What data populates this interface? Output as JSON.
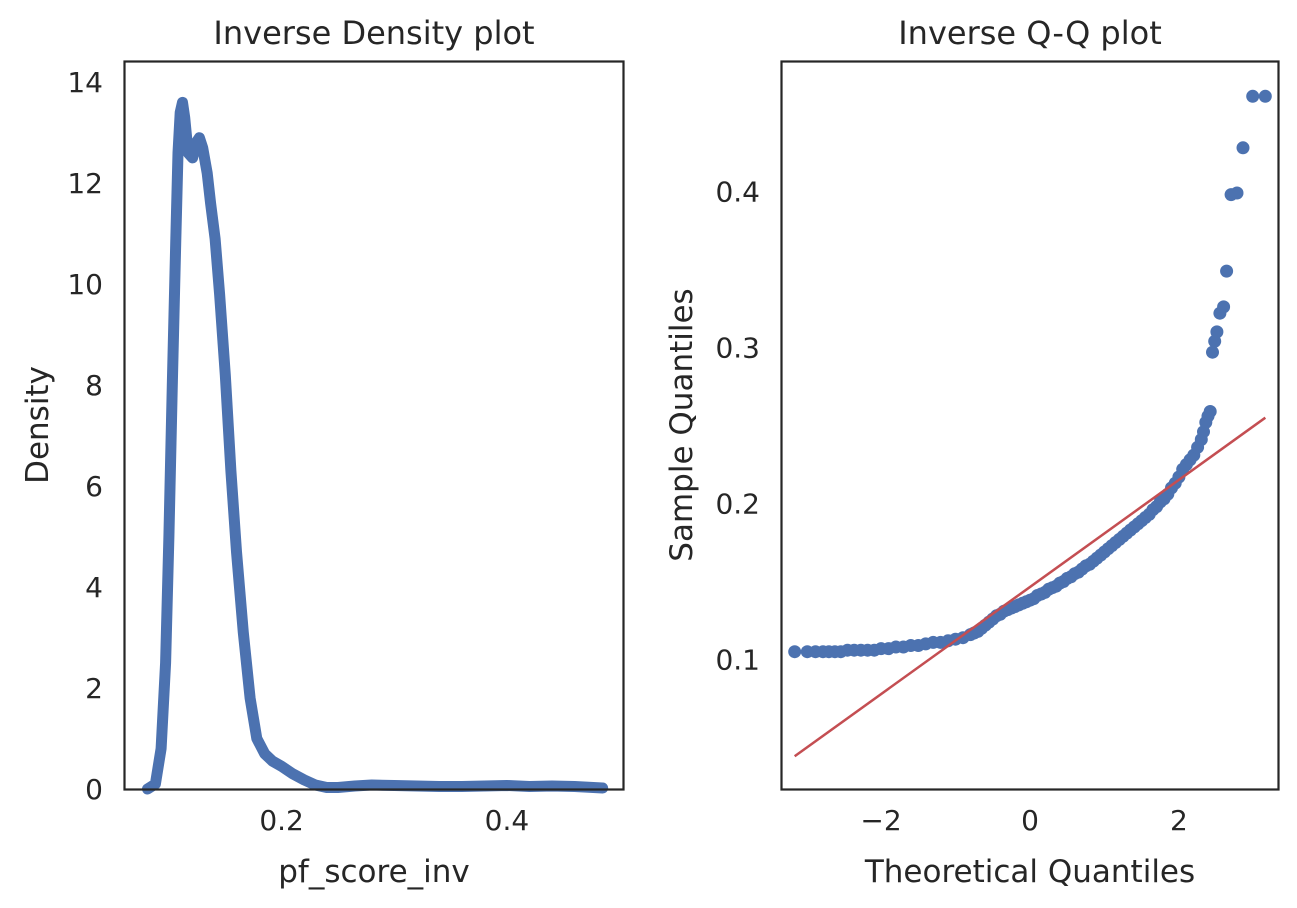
{
  "chart_data": [
    {
      "type": "line",
      "title": "Inverse Density plot",
      "xlabel": "pf_score_inv",
      "ylabel": "Density",
      "xlim": [
        0.061,
        0.503
      ],
      "ylim": [
        0,
        14.4
      ],
      "xticks": [
        0.2,
        0.4
      ],
      "xtick_labels": [
        "0.2",
        "0.4"
      ],
      "yticks": [
        0,
        2,
        4,
        6,
        8,
        10,
        12,
        14
      ],
      "ytick_labels": [
        "0",
        "2",
        "4",
        "6",
        "8",
        "10",
        "12",
        "14"
      ],
      "grid": false,
      "color": "#4c72b0",
      "series": [
        {
          "x": [
            0.081,
            0.088,
            0.093,
            0.097,
            0.1,
            0.103,
            0.106,
            0.108,
            0.11,
            0.112,
            0.114,
            0.117,
            0.121,
            0.124,
            0.127,
            0.13,
            0.134,
            0.137,
            0.141,
            0.145,
            0.15,
            0.155,
            0.16,
            0.166,
            0.172,
            0.178,
            0.185,
            0.192,
            0.2,
            0.21,
            0.22,
            0.23,
            0.24,
            0.25,
            0.265,
            0.28,
            0.3,
            0.32,
            0.34,
            0.36,
            0.38,
            0.4,
            0.42,
            0.44,
            0.46,
            0.485
          ],
          "y": [
            0,
            0.1,
            0.8,
            2.5,
            5.0,
            8.0,
            10.8,
            12.6,
            13.4,
            13.6,
            13.3,
            12.6,
            12.5,
            12.8,
            12.9,
            12.7,
            12.2,
            11.6,
            10.9,
            9.8,
            8.2,
            6.3,
            4.7,
            3.1,
            1.8,
            1.0,
            0.7,
            0.55,
            0.45,
            0.3,
            0.18,
            0.08,
            0.03,
            0.03,
            0.06,
            0.08,
            0.07,
            0.06,
            0.05,
            0.05,
            0.06,
            0.07,
            0.05,
            0.06,
            0.05,
            0.02
          ]
        }
      ]
    },
    {
      "type": "scatter",
      "title": "Inverse Q-Q plot",
      "xlabel": "Theoretical Quantiles",
      "ylabel": "Sample Quantiles",
      "xlim": [
        -3.33,
        3.33
      ],
      "ylim": [
        0.017,
        0.483
      ],
      "xticks": [
        -2,
        0,
        2
      ],
      "xtick_labels": [
        "−2",
        "0",
        "2"
      ],
      "yticks": [
        0.1,
        0.2,
        0.3,
        0.4
      ],
      "ytick_labels": [
        "0.1",
        "0.2",
        "0.3",
        "0.4"
      ],
      "grid": false,
      "marker_color": "#4c72b0",
      "line_color": "#c44e52",
      "series": [
        {
          "name": "",
          "x": [
            -3.16,
            -2.99,
            -2.88,
            -2.78,
            -2.7,
            -2.62,
            -2.54,
            -2.45,
            -2.36,
            -2.27,
            -2.18,
            -2.09,
            -2.0,
            -1.9,
            -1.8,
            -1.7,
            -1.6,
            -1.5,
            -1.4,
            -1.3,
            -1.2,
            -1.1,
            -1.0,
            -0.9,
            -0.8,
            -0.75,
            -0.7,
            -0.65,
            -0.6,
            -0.55,
            -0.5,
            -0.45,
            -0.4,
            -0.35,
            -0.3,
            -0.25,
            -0.2,
            -0.15,
            -0.1,
            -0.05,
            0.0,
            0.05,
            0.1,
            0.15,
            0.2,
            0.25,
            0.3,
            0.35,
            0.4,
            0.45,
            0.5,
            0.55,
            0.6,
            0.65,
            0.7,
            0.75,
            0.8,
            0.85,
            0.9,
            0.95,
            1.0,
            1.05,
            1.1,
            1.15,
            1.2,
            1.25,
            1.3,
            1.35,
            1.4,
            1.45,
            1.5,
            1.55,
            1.6,
            1.65,
            1.7,
            1.75,
            1.8,
            1.85,
            1.9,
            1.95,
            2.0,
            2.05,
            2.1,
            2.15,
            2.2,
            2.25,
            2.3,
            2.33,
            2.36,
            2.39,
            2.42,
            2.45,
            2.48,
            2.51,
            2.55,
            2.6,
            2.64,
            2.7,
            2.78,
            2.86,
            2.99,
            3.16
          ],
          "y": [
            0.105,
            0.105,
            0.105,
            0.105,
            0.105,
            0.105,
            0.105,
            0.106,
            0.106,
            0.106,
            0.106,
            0.106,
            0.107,
            0.107,
            0.108,
            0.108,
            0.109,
            0.109,
            0.11,
            0.111,
            0.111,
            0.112,
            0.113,
            0.114,
            0.116,
            0.117,
            0.118,
            0.12,
            0.122,
            0.124,
            0.126,
            0.128,
            0.129,
            0.131,
            0.132,
            0.133,
            0.134,
            0.135,
            0.136,
            0.137,
            0.138,
            0.139,
            0.141,
            0.142,
            0.143,
            0.145,
            0.146,
            0.147,
            0.149,
            0.15,
            0.152,
            0.153,
            0.155,
            0.156,
            0.158,
            0.16,
            0.161,
            0.163,
            0.165,
            0.167,
            0.169,
            0.171,
            0.173,
            0.175,
            0.177,
            0.179,
            0.181,
            0.183,
            0.185,
            0.187,
            0.189,
            0.191,
            0.193,
            0.196,
            0.198,
            0.201,
            0.203,
            0.206,
            0.21,
            0.213,
            0.217,
            0.222,
            0.225,
            0.228,
            0.231,
            0.236,
            0.241,
            0.246,
            0.252,
            0.256,
            0.259,
            0.297,
            0.304,
            0.31,
            0.322,
            0.326,
            0.349,
            0.398,
            0.399,
            0.428,
            0.461,
            0.461
          ]
        }
      ],
      "reference_line": {
        "x": [
          -3.16,
          3.16
        ],
        "y": [
          0.038,
          0.255
        ]
      }
    }
  ]
}
